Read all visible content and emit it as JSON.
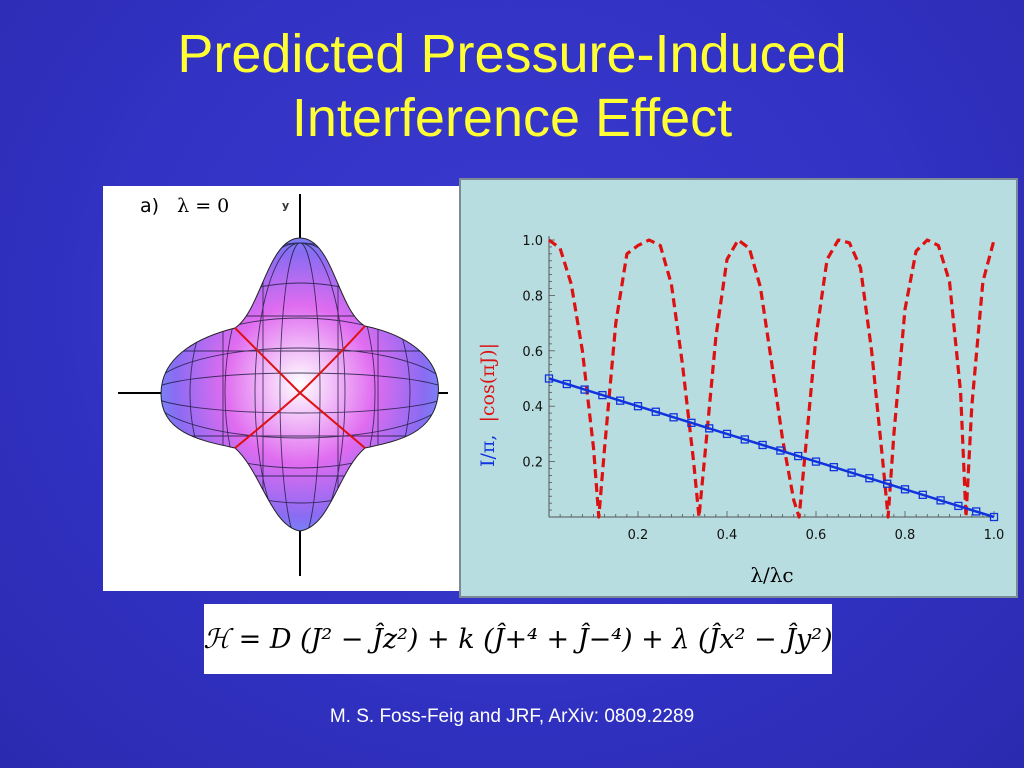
{
  "slide": {
    "title_line1": "Predicted Pressure-Induced",
    "title_line2": "Interference Effect",
    "citation": "M. S. Foss-Feig and JRF, ArXiv: 0809.2289",
    "formula": "ℋ = D (J² − Ĵz²) + k (Ĵ+⁴ + Ĵ−⁴) + λ (Ĵx² − Ĵy²)",
    "colors": {
      "background": "#3232c4",
      "title": "#ffff33",
      "citation": "#ffffff"
    }
  },
  "panel_a": {
    "label": "a)",
    "param": "λ = 0",
    "axis_letter": "y",
    "image": "tetrahedral-energy-surface-3d"
  },
  "chart_data": {
    "type": "line",
    "xlabel": "λ/λc",
    "ylabel": "I/π, |cos(πJ)|",
    "ylabel_parts": {
      "first": "I/π,",
      "second": "|cos(πJ)|"
    },
    "xlim": [
      0,
      1.0
    ],
    "ylim": [
      0,
      1.0
    ],
    "xticks": [
      0.2,
      0.4,
      0.6,
      0.8,
      1.0
    ],
    "yticks": [
      0.2,
      0.4,
      0.6,
      0.8,
      1.0
    ],
    "xtick_labels": [
      "0.2",
      "0.4",
      "0.6",
      "0.8",
      "1.0"
    ],
    "ytick_labels": [
      "0.2",
      "0.4",
      "0.6",
      "0.8",
      "1.0"
    ],
    "grid": false,
    "background": "#b8dde0",
    "series": [
      {
        "style": "dashed",
        "color": "#dd1111",
        "x": [
          0,
          0.025,
          0.05,
          0.075,
          0.1,
          0.112,
          0.125,
          0.15,
          0.175,
          0.2,
          0.225,
          0.25,
          0.275,
          0.3,
          0.325,
          0.337,
          0.35,
          0.375,
          0.4,
          0.425,
          0.45,
          0.475,
          0.5,
          0.525,
          0.55,
          0.562,
          0.575,
          0.6,
          0.625,
          0.65,
          0.675,
          0.7,
          0.725,
          0.75,
          0.762,
          0.775,
          0.8,
          0.825,
          0.85,
          0.875,
          0.9,
          0.925,
          0.937,
          0.95,
          0.975,
          1.0
        ],
        "y": [
          1.0,
          0.97,
          0.84,
          0.6,
          0.25,
          0.0,
          0.25,
          0.7,
          0.95,
          0.98,
          1.0,
          0.98,
          0.84,
          0.55,
          0.2,
          0.0,
          0.22,
          0.65,
          0.93,
          1.0,
          0.97,
          0.83,
          0.56,
          0.28,
          0.06,
          0.0,
          0.22,
          0.65,
          0.93,
          1.0,
          0.99,
          0.9,
          0.6,
          0.2,
          0.0,
          0.3,
          0.75,
          0.96,
          1.0,
          0.98,
          0.85,
          0.45,
          0.0,
          0.4,
          0.85,
          1.0
        ]
      },
      {
        "style": "solid-square-markers",
        "color": "#1133dd",
        "x": [
          0,
          0.04,
          0.08,
          0.12,
          0.16,
          0.2,
          0.24,
          0.28,
          0.32,
          0.36,
          0.4,
          0.44,
          0.48,
          0.52,
          0.56,
          0.6,
          0.64,
          0.68,
          0.72,
          0.76,
          0.8,
          0.84,
          0.88,
          0.92,
          0.96,
          1.0
        ],
        "y": [
          0.5,
          0.48,
          0.46,
          0.44,
          0.42,
          0.4,
          0.38,
          0.36,
          0.34,
          0.32,
          0.3,
          0.28,
          0.26,
          0.24,
          0.22,
          0.2,
          0.18,
          0.16,
          0.14,
          0.12,
          0.1,
          0.08,
          0.06,
          0.04,
          0.02,
          0.0
        ]
      }
    ]
  }
}
